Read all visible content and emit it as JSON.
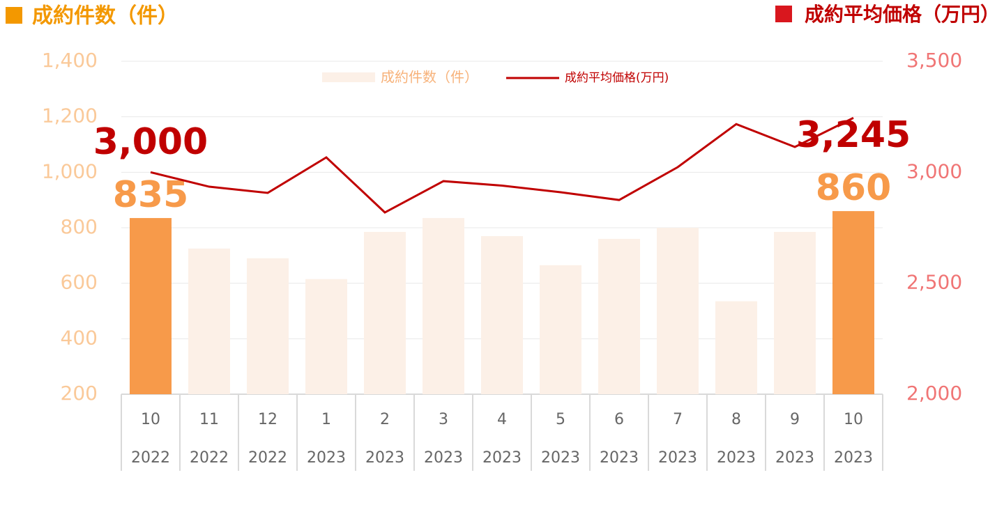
{
  "chart_data": {
    "type": "bar-line",
    "ylabel": "成約件数（件）",
    "y2label": "成約平均価格（万円）",
    "categories": [
      "10",
      "11",
      "12",
      "1",
      "2",
      "3",
      "4",
      "5",
      "6",
      "7",
      "8",
      "9",
      "10"
    ],
    "category_years": [
      "2022",
      "2022",
      "2022",
      "2023",
      "2023",
      "2023",
      "2023",
      "2023",
      "2023",
      "2023",
      "2023",
      "2023",
      "2023"
    ],
    "series": [
      {
        "name": "成約件数（件）",
        "type": "bar",
        "color": "#fcf0e7",
        "colors": [
          "#f79a4a",
          "#fcf0e7",
          "#fcf0e7",
          "#fcf0e7",
          "#fcf0e7",
          "#fcf0e7",
          "#fcf0e7",
          "#fcf0e7",
          "#fcf0e7",
          "#fcf0e7",
          "#fcf0e7",
          "#fcf0e7",
          "#f79a4a"
        ],
        "values": [
          835,
          725,
          690,
          615,
          785,
          835,
          770,
          665,
          760,
          800,
          535,
          785,
          860
        ],
        "value_labels": [
          "835",
          null,
          null,
          null,
          null,
          null,
          null,
          null,
          null,
          null,
          null,
          null,
          "860"
        ]
      },
      {
        "name": "成約平均価格(万円)",
        "type": "line",
        "axis": "y2",
        "color": "#c00000",
        "values": [
          3000,
          2935,
          2907,
          3067,
          2819,
          2960,
          2940,
          2910,
          2875,
          3023,
          3217,
          3114,
          3245
        ],
        "value_labels": [
          "3,000",
          null,
          null,
          null,
          null,
          null,
          null,
          null,
          null,
          null,
          null,
          null,
          "3,245"
        ]
      }
    ],
    "ylim": [
      200,
      1400
    ],
    "yticks": [
      200,
      400,
      600,
      800,
      {
        "value": 1000,
        "label": "1,000"
      },
      {
        "value": 1200,
        "label": "1,200"
      },
      {
        "value": 1400,
        "label": "1,400"
      }
    ],
    "y2lim": [
      2000,
      3500
    ],
    "y2ticks": [
      {
        "value": 2000,
        "label": "2,000"
      },
      {
        "value": 2500,
        "label": "2,500"
      },
      {
        "value": 3000,
        "label": "3,000"
      },
      {
        "value": 3500,
        "label": "3,500"
      }
    ],
    "grid": true
  }
}
